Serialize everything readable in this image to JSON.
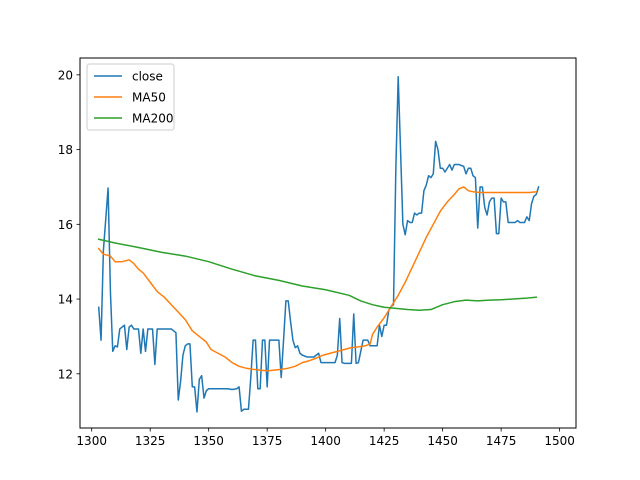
{
  "chart_data": {
    "type": "line",
    "title": "",
    "xlabel": "",
    "ylabel": "",
    "xlim": [
      1295,
      1507
    ],
    "ylim": [
      10.55,
      20.45
    ],
    "x_ticks": [
      1300,
      1325,
      1350,
      1375,
      1400,
      1425,
      1450,
      1475,
      1500
    ],
    "y_ticks": [
      12,
      14,
      16,
      18,
      20
    ],
    "grid": false,
    "legend": {
      "position": "upper-left"
    },
    "series": [
      {
        "name": "close",
        "color": "#1f77b4",
        "points": [
          [
            1303,
            13.78
          ],
          [
            1304,
            12.9
          ],
          [
            1305,
            15.3
          ],
          [
            1307,
            16.97
          ],
          [
            1308,
            14.2
          ],
          [
            1309,
            12.6
          ],
          [
            1310,
            12.75
          ],
          [
            1311,
            12.72
          ],
          [
            1312,
            13.2
          ],
          [
            1313,
            13.25
          ],
          [
            1314,
            13.3
          ],
          [
            1315,
            12.65
          ],
          [
            1316,
            13.25
          ],
          [
            1317,
            13.3
          ],
          [
            1318,
            13.2
          ],
          [
            1320,
            13.2
          ],
          [
            1321,
            12.55
          ],
          [
            1322,
            13.2
          ],
          [
            1323,
            12.6
          ],
          [
            1324,
            13.2
          ],
          [
            1326,
            13.2
          ],
          [
            1327,
            12.25
          ],
          [
            1328,
            13.2
          ],
          [
            1330,
            13.2
          ],
          [
            1332,
            13.2
          ],
          [
            1334,
            13.2
          ],
          [
            1336,
            13.1
          ],
          [
            1337,
            11.3
          ],
          [
            1338,
            11.8
          ],
          [
            1339,
            12.5
          ],
          [
            1340,
            12.75
          ],
          [
            1341,
            12.8
          ],
          [
            1342,
            12.8
          ],
          [
            1343,
            11.65
          ],
          [
            1344,
            11.65
          ],
          [
            1345,
            10.98
          ],
          [
            1346,
            11.85
          ],
          [
            1347,
            11.95
          ],
          [
            1348,
            11.35
          ],
          [
            1349,
            11.55
          ],
          [
            1350,
            11.6
          ],
          [
            1352,
            11.6
          ],
          [
            1354,
            11.6
          ],
          [
            1356,
            11.6
          ],
          [
            1358,
            11.6
          ],
          [
            1360,
            11.58
          ],
          [
            1362,
            11.6
          ],
          [
            1363,
            11.65
          ],
          [
            1364,
            11.0
          ],
          [
            1365,
            11.05
          ],
          [
            1367,
            11.05
          ],
          [
            1368,
            11.9
          ],
          [
            1369,
            12.9
          ],
          [
            1370,
            12.9
          ],
          [
            1371,
            11.6
          ],
          [
            1372,
            11.6
          ],
          [
            1373,
            12.9
          ],
          [
            1374,
            12.9
          ],
          [
            1375,
            11.65
          ],
          [
            1376,
            12.9
          ],
          [
            1377,
            12.9
          ],
          [
            1379,
            12.9
          ],
          [
            1380,
            12.9
          ],
          [
            1381,
            11.9
          ],
          [
            1382,
            12.9
          ],
          [
            1383,
            13.95
          ],
          [
            1384,
            13.95
          ],
          [
            1385,
            13.4
          ],
          [
            1386,
            12.9
          ],
          [
            1387,
            12.7
          ],
          [
            1388,
            12.75
          ],
          [
            1389,
            12.55
          ],
          [
            1390,
            12.5
          ],
          [
            1392,
            12.45
          ],
          [
            1394,
            12.45
          ],
          [
            1395,
            12.45
          ],
          [
            1396,
            12.5
          ],
          [
            1397,
            12.55
          ],
          [
            1398,
            12.3
          ],
          [
            1399,
            12.3
          ],
          [
            1401,
            12.3
          ],
          [
            1402,
            12.3
          ],
          [
            1404,
            12.3
          ],
          [
            1405,
            12.5
          ],
          [
            1406,
            13.48
          ],
          [
            1407,
            12.3
          ],
          [
            1408,
            12.28
          ],
          [
            1410,
            12.28
          ],
          [
            1411,
            12.28
          ],
          [
            1412,
            13.6
          ],
          [
            1413,
            12.28
          ],
          [
            1414,
            12.3
          ],
          [
            1416,
            12.9
          ],
          [
            1418,
            12.9
          ],
          [
            1419,
            12.75
          ],
          [
            1420,
            12.75
          ],
          [
            1422,
            12.75
          ],
          [
            1423,
            13.3
          ],
          [
            1424,
            13.0
          ],
          [
            1425,
            13.3
          ],
          [
            1426,
            13.3
          ],
          [
            1427,
            13.7
          ],
          [
            1428,
            13.8
          ],
          [
            1429,
            13.85
          ],
          [
            1430,
            17.5
          ],
          [
            1431,
            19.95
          ],
          [
            1432,
            18.0
          ],
          [
            1433,
            16.0
          ],
          [
            1434,
            15.72
          ],
          [
            1435,
            16.1
          ],
          [
            1436,
            16.05
          ],
          [
            1437,
            16.05
          ],
          [
            1438,
            16.3
          ],
          [
            1439,
            16.25
          ],
          [
            1440,
            16.3
          ],
          [
            1441,
            16.3
          ],
          [
            1442,
            16.9
          ],
          [
            1443,
            17.05
          ],
          [
            1444,
            17.3
          ],
          [
            1445,
            17.25
          ],
          [
            1446,
            17.35
          ],
          [
            1447,
            18.22
          ],
          [
            1448,
            18.0
          ],
          [
            1449,
            17.5
          ],
          [
            1450,
            17.5
          ],
          [
            1451,
            17.4
          ],
          [
            1452,
            17.5
          ],
          [
            1453,
            17.6
          ],
          [
            1454,
            17.45
          ],
          [
            1455,
            17.6
          ],
          [
            1457,
            17.6
          ],
          [
            1459,
            17.55
          ],
          [
            1460,
            17.35
          ],
          [
            1461,
            17.5
          ],
          [
            1462,
            17.5
          ],
          [
            1463,
            17.3
          ],
          [
            1464,
            17.25
          ],
          [
            1465,
            15.9
          ],
          [
            1466,
            17.0
          ],
          [
            1467,
            17.0
          ],
          [
            1468,
            16.45
          ],
          [
            1469,
            16.25
          ],
          [
            1470,
            16.6
          ],
          [
            1471,
            16.7
          ],
          [
            1472,
            16.7
          ],
          [
            1473,
            15.75
          ],
          [
            1474,
            15.75
          ],
          [
            1475,
            16.7
          ],
          [
            1476,
            16.6
          ],
          [
            1477,
            16.6
          ],
          [
            1478,
            16.05
          ],
          [
            1479,
            16.05
          ],
          [
            1481,
            16.05
          ],
          [
            1482,
            16.1
          ],
          [
            1483,
            16.05
          ],
          [
            1485,
            16.05
          ],
          [
            1486,
            16.2
          ],
          [
            1487,
            16.1
          ],
          [
            1488,
            16.55
          ],
          [
            1489,
            16.75
          ],
          [
            1490,
            16.8
          ],
          [
            1491,
            17.0
          ]
        ]
      },
      {
        "name": "MA50",
        "color": "#ff7f0e",
        "points": [
          [
            1303,
            15.35
          ],
          [
            1305,
            15.2
          ],
          [
            1308,
            15.15
          ],
          [
            1310,
            15.0
          ],
          [
            1313,
            15.0
          ],
          [
            1316,
            15.05
          ],
          [
            1318,
            14.95
          ],
          [
            1320,
            14.8
          ],
          [
            1322,
            14.7
          ],
          [
            1325,
            14.45
          ],
          [
            1328,
            14.2
          ],
          [
            1331,
            14.05
          ],
          [
            1334,
            13.85
          ],
          [
            1337,
            13.65
          ],
          [
            1340,
            13.45
          ],
          [
            1343,
            13.15
          ],
          [
            1346,
            13.0
          ],
          [
            1349,
            12.85
          ],
          [
            1351,
            12.65
          ],
          [
            1354,
            12.55
          ],
          [
            1357,
            12.45
          ],
          [
            1360,
            12.3
          ],
          [
            1363,
            12.2
          ],
          [
            1366,
            12.15
          ],
          [
            1369,
            12.12
          ],
          [
            1372,
            12.1
          ],
          [
            1375,
            12.08
          ],
          [
            1378,
            12.1
          ],
          [
            1381,
            12.12
          ],
          [
            1384,
            12.15
          ],
          [
            1387,
            12.2
          ],
          [
            1390,
            12.3
          ],
          [
            1393,
            12.35
          ],
          [
            1396,
            12.42
          ],
          [
            1399,
            12.5
          ],
          [
            1402,
            12.55
          ],
          [
            1405,
            12.6
          ],
          [
            1408,
            12.65
          ],
          [
            1411,
            12.7
          ],
          [
            1414,
            12.72
          ],
          [
            1417,
            12.75
          ],
          [
            1419,
            12.8
          ],
          [
            1420,
            13.05
          ],
          [
            1422,
            13.25
          ],
          [
            1425,
            13.5
          ],
          [
            1428,
            13.8
          ],
          [
            1431,
            14.1
          ],
          [
            1434,
            14.45
          ],
          [
            1437,
            14.85
          ],
          [
            1440,
            15.25
          ],
          [
            1443,
            15.65
          ],
          [
            1446,
            16.0
          ],
          [
            1449,
            16.35
          ],
          [
            1452,
            16.6
          ],
          [
            1455,
            16.8
          ],
          [
            1457,
            16.95
          ],
          [
            1459,
            17.0
          ],
          [
            1461,
            16.9
          ],
          [
            1463,
            16.87
          ],
          [
            1466,
            16.85
          ],
          [
            1469,
            16.85
          ],
          [
            1472,
            16.85
          ],
          [
            1475,
            16.85
          ],
          [
            1478,
            16.85
          ],
          [
            1481,
            16.85
          ],
          [
            1484,
            16.85
          ],
          [
            1487,
            16.85
          ],
          [
            1490,
            16.87
          ]
        ]
      },
      {
        "name": "MA200",
        "color": "#2ca02c",
        "points": [
          [
            1303,
            15.6
          ],
          [
            1310,
            15.5
          ],
          [
            1320,
            15.38
          ],
          [
            1330,
            15.25
          ],
          [
            1340,
            15.15
          ],
          [
            1350,
            15.0
          ],
          [
            1360,
            14.8
          ],
          [
            1370,
            14.62
          ],
          [
            1380,
            14.5
          ],
          [
            1390,
            14.35
          ],
          [
            1400,
            14.25
          ],
          [
            1410,
            14.1
          ],
          [
            1415,
            13.95
          ],
          [
            1420,
            13.85
          ],
          [
            1425,
            13.78
          ],
          [
            1430,
            13.75
          ],
          [
            1435,
            13.72
          ],
          [
            1440,
            13.7
          ],
          [
            1445,
            13.72
          ],
          [
            1450,
            13.85
          ],
          [
            1455,
            13.93
          ],
          [
            1460,
            13.97
          ],
          [
            1465,
            13.95
          ],
          [
            1470,
            13.97
          ],
          [
            1475,
            13.98
          ],
          [
            1480,
            14.0
          ],
          [
            1485,
            14.02
          ],
          [
            1490,
            14.05
          ]
        ]
      }
    ]
  }
}
